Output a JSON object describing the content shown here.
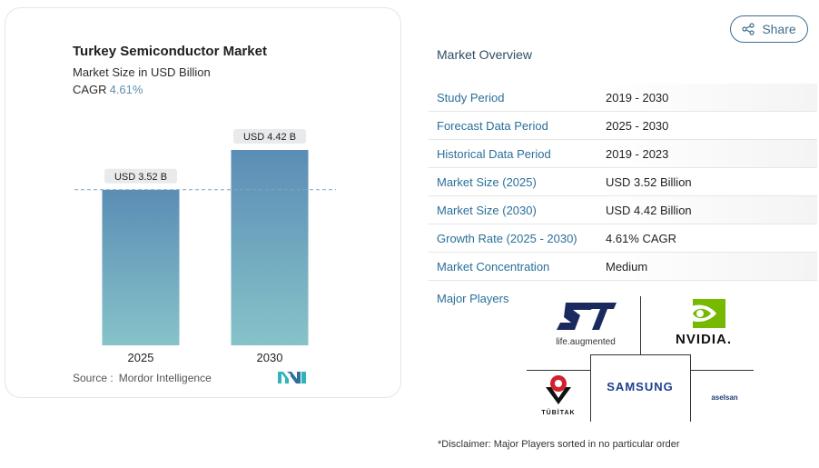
{
  "header": {
    "share_label": "Share"
  },
  "chart_data": {
    "type": "bar",
    "title": "Turkey Semiconductor Market",
    "subtitle": "Market Size in USD Billion",
    "cagr_label": "CAGR",
    "cagr_value": "4.61%",
    "categories": [
      "2025",
      "2030"
    ],
    "values": [
      3.52,
      4.42
    ],
    "data_labels": [
      "USD 3.52 B",
      "USD 4.42 B"
    ],
    "ylim": [
      0,
      4.42
    ],
    "reference_line": {
      "value": 3.52,
      "style": "dashed"
    },
    "colors": {
      "bar_top": "#5b8db5",
      "bar_bottom": "#86c3c9",
      "label_bg": "#e8eaeb",
      "ref_line": "#7ea3c4"
    },
    "source_label": "Source :",
    "source_value": "Mordor Intelligence"
  },
  "overview": {
    "title": "Market Overview",
    "rows": [
      {
        "label": "Study Period",
        "value": "2019 - 2030"
      },
      {
        "label": "Forecast Data Period",
        "value": "2025 - 2030"
      },
      {
        "label": "Historical Data Period",
        "value": "2019 - 2023"
      },
      {
        "label": "Market Size (2025)",
        "value": "USD 3.52 Billion"
      },
      {
        "label": "Market Size (2030)",
        "value": "USD 4.42 Billion"
      },
      {
        "label": "Growth Rate (2025 - 2030)",
        "value": "4.61% CAGR"
      },
      {
        "label": "Market Concentration",
        "value": "Medium"
      }
    ]
  },
  "players": {
    "label": "Major Players",
    "logos": [
      {
        "name": "st-logo",
        "caption": "life.augmented"
      },
      {
        "name": "nvidia-logo",
        "caption": "NVIDIA."
      },
      {
        "name": "tubitak-logo",
        "caption": "TÜBİTAK"
      },
      {
        "name": "samsung-logo",
        "caption": "SAMSUNG"
      },
      {
        "name": "aselsan-logo",
        "caption": "aselsan"
      }
    ]
  },
  "disclaimer": "*Disclaimer: Major Players sorted in no particular order"
}
